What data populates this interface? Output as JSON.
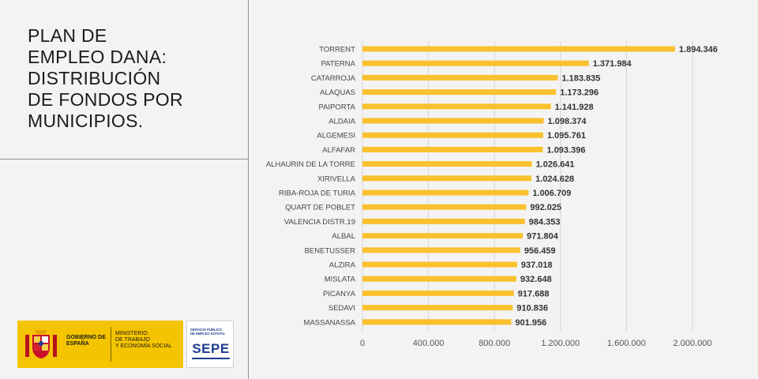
{
  "title_lines": [
    "PLAN DE",
    "EMPLEO DANA:",
    "DISTRIBUCIÓN",
    "DE FONDOS POR",
    "MUNICIPIOS."
  ],
  "footer": {
    "gov_label": "GOBIERNO DE ESPAÑA",
    "ministry_lines": [
      "MINISTERIO",
      "DE TRABAJO",
      "Y ECONOMÍA SOCIAL"
    ],
    "sepe_small_lines": [
      "SERVICIO PÚBLICO",
      "DE EMPLEO ESTATAL"
    ],
    "sepe_name": "SEPE"
  },
  "colors": {
    "bar": "#f9c12e",
    "grid": "#d6d6d6",
    "background": "#f3f3f3",
    "gov_yellow": "#f5c400",
    "sepe_blue": "#1d3d8f"
  },
  "chart_data": {
    "type": "bar",
    "orientation": "horizontal",
    "title": "",
    "xlabel": "",
    "ylabel": "",
    "xlim": [
      0,
      2000000
    ],
    "x_ticks": [
      0,
      400000,
      800000,
      1200000,
      1600000,
      2000000
    ],
    "x_tick_labels": [
      "0",
      "400.000",
      "800.000",
      "1.200.000",
      "1.600.000",
      "2.000.000"
    ],
    "grid": true,
    "categories": [
      "TORRENT",
      "PATERNA",
      "CATARROJA",
      "ALAQUAS",
      "PAIPORTA",
      "ALDAIA",
      "ALGEMESI",
      "ALFAFAR",
      "ALHAURIN DE LA TORRE",
      "XIRIVELLA",
      "RIBA-ROJA DE TURIA",
      "QUART DE POBLET",
      "VALENCIA DISTR.19",
      "ALBAL",
      "BENETUSSER",
      "ALZIRA",
      "MISLATA",
      "PICANYA",
      "SEDAVI",
      "MASSANASSA"
    ],
    "values": [
      1894346,
      1371984,
      1183835,
      1173296,
      1141928,
      1098374,
      1095761,
      1093396,
      1026641,
      1024628,
      1006709,
      992025,
      984353,
      971804,
      956459,
      937018,
      932648,
      917688,
      910836,
      901956
    ],
    "value_labels": [
      "1.894.346",
      "1.371.984",
      "1.183.835",
      "1.173.296",
      "1.141.928",
      "1.098.374",
      "1.095.761",
      "1.093.396",
      "1.026.641",
      "1.024.628",
      "1.006.709",
      "992.025",
      "984.353",
      "971.804",
      "956.459",
      "937.018",
      "932.648",
      "917.688",
      "910.836",
      "901.956"
    ]
  }
}
